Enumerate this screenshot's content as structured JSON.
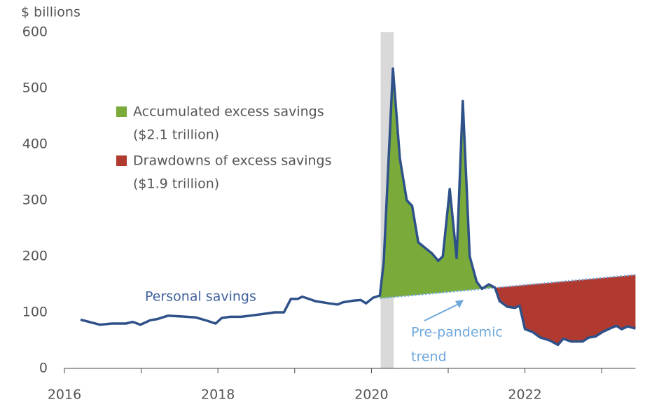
{
  "chart_data": {
    "type": "line",
    "y_label": "$ billions",
    "xlim": [
      2016,
      2023.44
    ],
    "xticks": [
      2016,
      2018,
      2020,
      2022
    ],
    "minor_xticks": [
      2017,
      2019,
      2021,
      2023
    ],
    "ylim": [
      0,
      600
    ],
    "yticks": [
      0,
      100,
      200,
      300,
      400,
      500,
      600
    ],
    "recession": [
      2020.12,
      2020.29
    ],
    "series": [
      {
        "name": "Personal savings",
        "color": "#2f5189",
        "x": [
          2016.21,
          2016.35,
          2016.46,
          2016.62,
          2016.8,
          2016.89,
          2016.99,
          2017.12,
          2017.21,
          2017.35,
          2017.49,
          2017.71,
          2017.86,
          2017.97,
          2018.05,
          2018.16,
          2018.3,
          2018.53,
          2018.74,
          2018.86,
          2018.95,
          2019.04,
          2019.1,
          2019.27,
          2019.45,
          2019.56,
          2019.63,
          2019.77,
          2019.86,
          2019.93,
          2020.02,
          2020.11,
          2020.16,
          2020.28,
          2020.37,
          2020.46,
          2020.53,
          2020.61,
          2020.79,
          2020.87,
          2020.93,
          2021.02,
          2021.11,
          2021.19,
          2021.28,
          2021.37,
          2021.44,
          2021.53,
          2021.61,
          2021.67,
          2021.77,
          2021.87,
          2021.93,
          2022.0,
          2022.1,
          2022.2,
          2022.32,
          2022.43,
          2022.5,
          2022.6,
          2022.75,
          2022.83,
          2022.92,
          2023.01,
          2023.12,
          2023.19,
          2023.26,
          2023.34,
          2023.44
        ],
        "values": [
          87,
          82,
          78,
          80,
          80,
          83,
          78,
          86,
          88,
          94,
          93,
          91,
          85,
          80,
          90,
          92,
          92,
          96,
          100,
          100,
          124,
          124,
          128,
          120,
          116,
          114,
          118,
          121,
          122,
          116,
          126,
          130,
          190,
          535,
          375,
          300,
          290,
          225,
          205,
          192,
          200,
          320,
          197,
          477,
          200,
          155,
          142,
          150,
          144,
          120,
          110,
          108,
          112,
          70,
          65,
          55,
          50,
          42,
          53,
          48,
          48,
          55,
          57,
          65,
          72,
          76,
          70,
          75,
          71
        ]
      },
      {
        "name": "Pre-pandemic trend",
        "color": "#6fa8dc",
        "x": [
          2020.11,
          2023.44
        ],
        "values": [
          125,
          167
        ]
      }
    ],
    "areas": [
      {
        "name": "Accumulated excess savings",
        "note": "($2.1 trillion)",
        "color": "#7aab3a",
        "from": 2020.11,
        "to": 2021.61
      },
      {
        "name": "Drawdowns of excess savings",
        "note": "($1.9 trillion)",
        "color": "#b03a30",
        "from": 2021.61,
        "to": 2023.44
      }
    ]
  }
}
